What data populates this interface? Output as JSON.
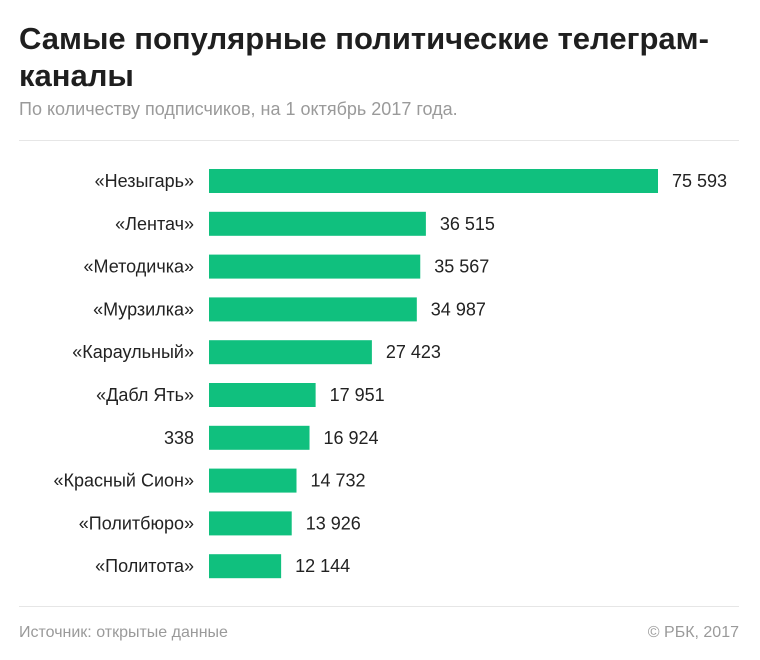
{
  "chart_data": {
    "type": "bar",
    "orientation": "horizontal",
    "title": "Самые популярные политические телеграм-каналы",
    "subtitle": "По количеству подписчиков, на 1 октябрь 2017 года.",
    "categories": [
      "«Незыгарь»",
      "«Лентач»",
      "«Методичка»",
      "«Мурзилка»",
      "«Караульный»",
      "«Дабл Ять»",
      "338",
      "«Красный Сион»",
      "«Политбюро»",
      "«Политота»"
    ],
    "values": [
      75593,
      36515,
      35567,
      34987,
      27423,
      17951,
      16924,
      14732,
      13926,
      12144
    ],
    "value_labels": [
      "75 593",
      "36 515",
      "35 567",
      "34 987",
      "27 423",
      "17 951",
      "16 924",
      "14 732",
      "13 926",
      "12 144"
    ],
    "xlim": [
      0,
      75593
    ],
    "grid": false,
    "bar_color": "#10c07e"
  },
  "footer": {
    "source": "Источник: открытые данные",
    "copyright": "© РБК, 2017"
  }
}
